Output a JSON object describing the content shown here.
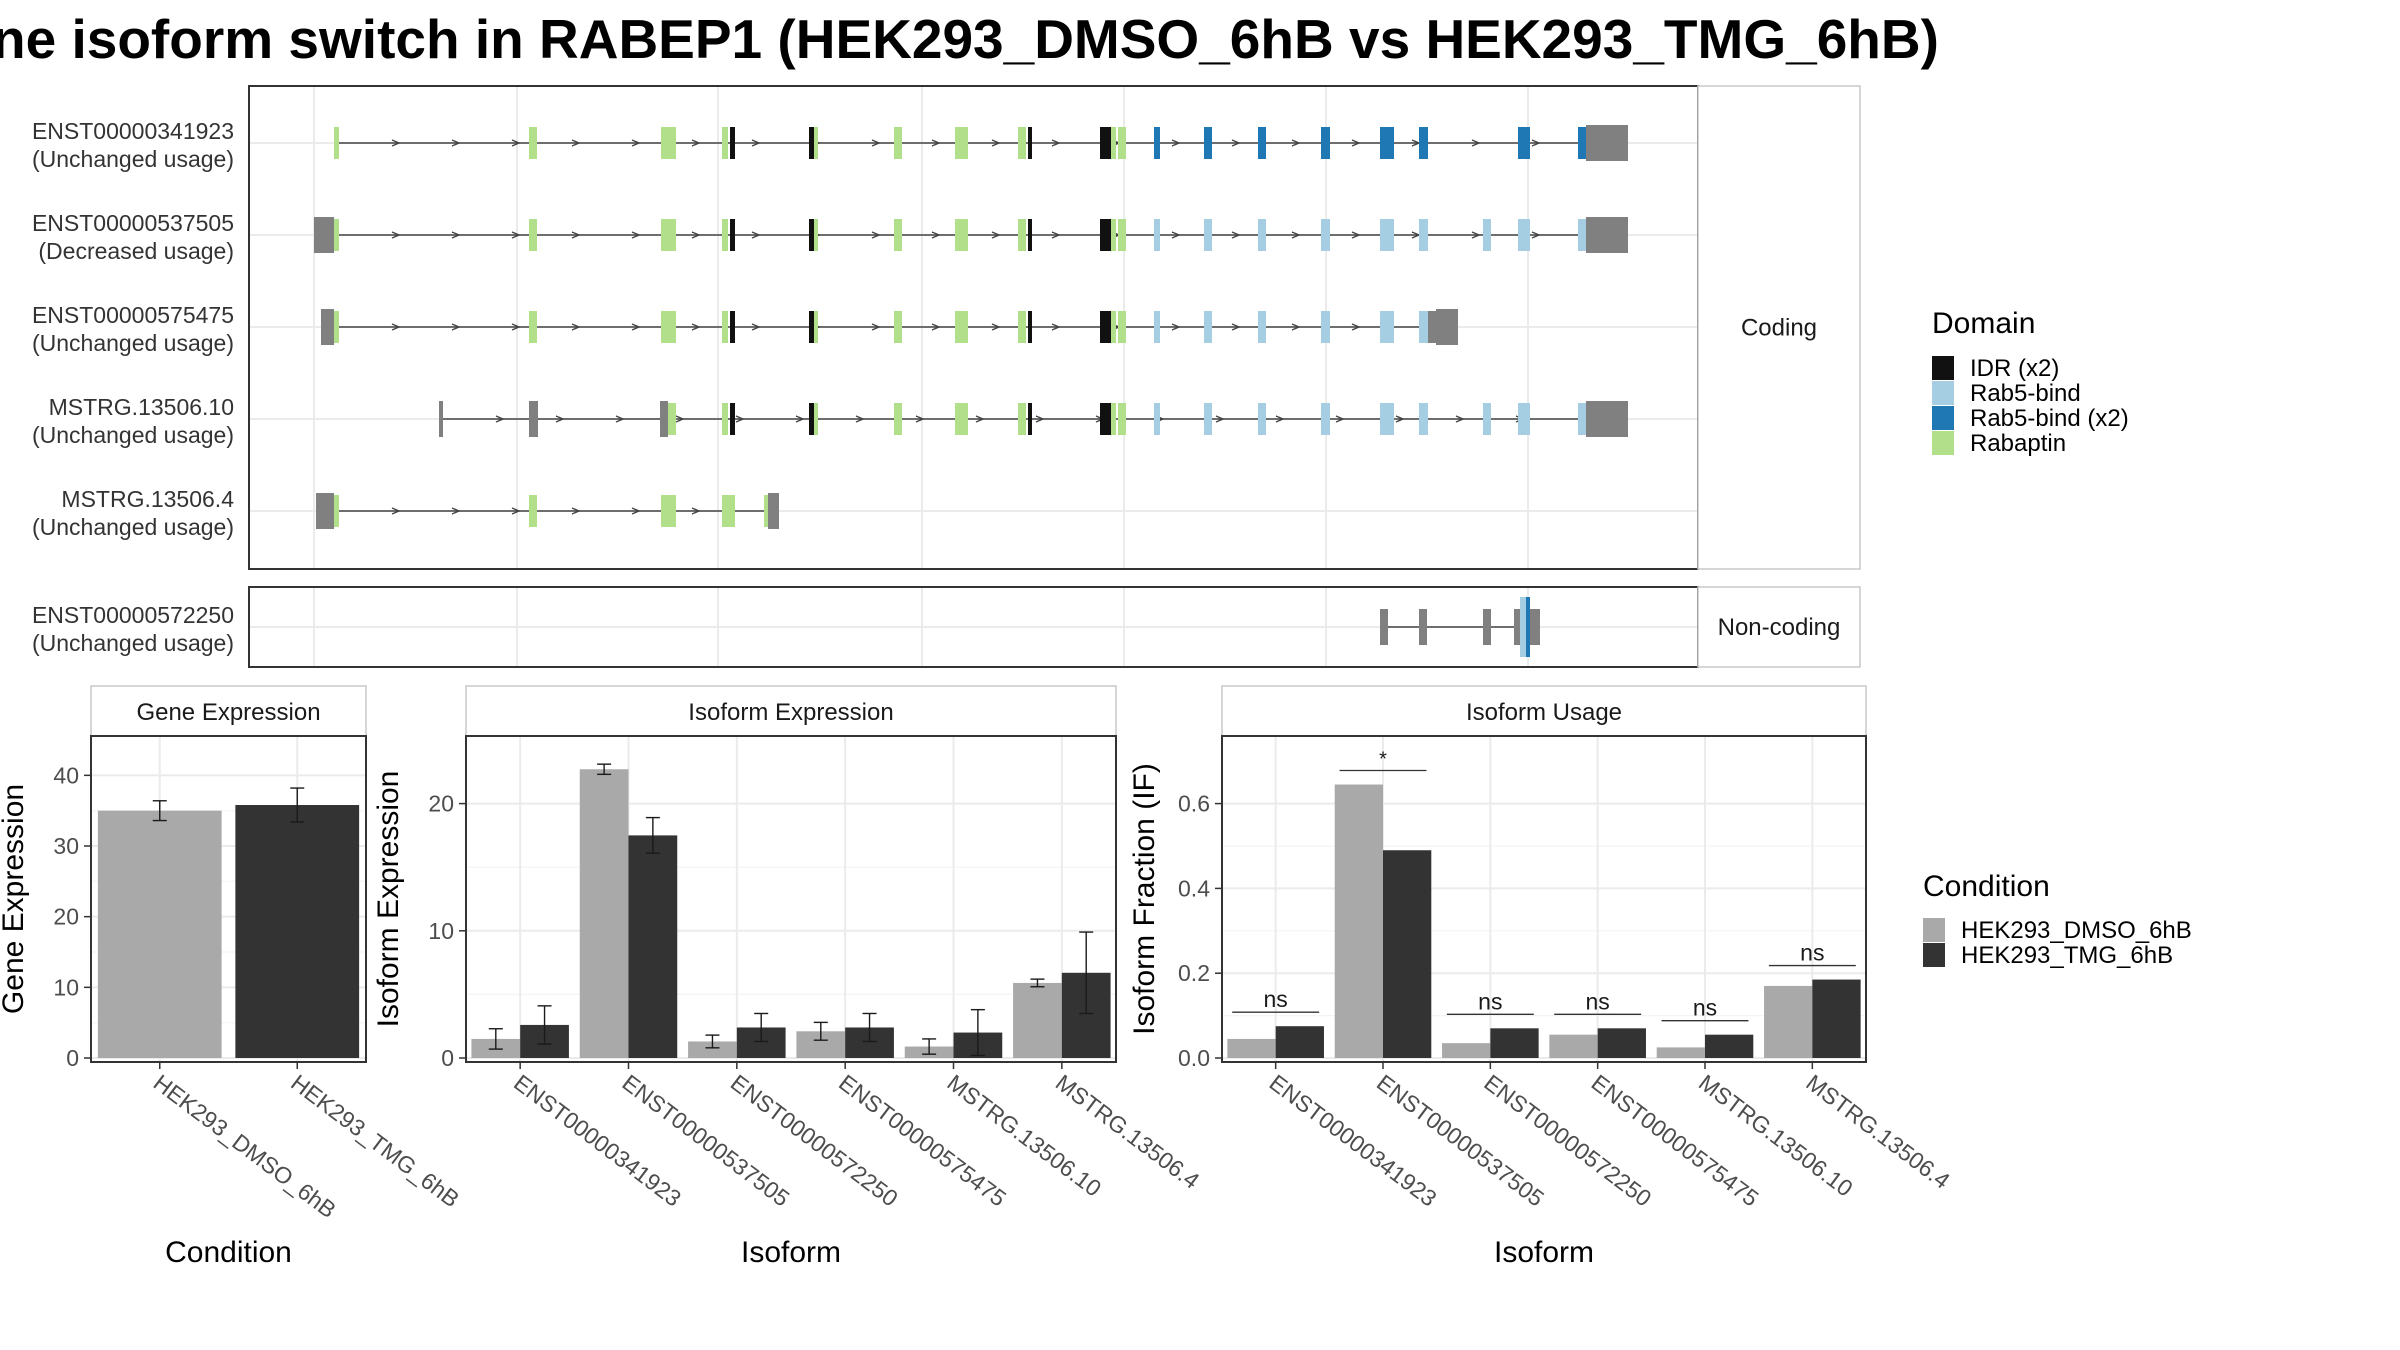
{
  "title": "ne isoform switch in RABEP1 (HEK293_DMSO_6hB vs HEK293_TMG_6hB)",
  "colors": {
    "idr": "#111111",
    "rab5_light": "#a6cee3",
    "rab5_dark": "#1f78b4",
    "rabaptin": "#b2df8a",
    "utr": "#808080",
    "dmso": "#a9a9a9",
    "tmg": "#333333"
  },
  "structure": {
    "coding_label": "Coding",
    "noncoding_label": "Non-coding",
    "transcripts": [
      {
        "id": "ENST00000341923",
        "usage": "(Unchanged usage)",
        "group": "coding"
      },
      {
        "id": "ENST00000537505",
        "usage": "(Decreased usage)",
        "group": "coding"
      },
      {
        "id": "ENST00000575475",
        "usage": "(Unchanged usage)",
        "group": "coding"
      },
      {
        "id": "MSTRG.13506.10",
        "usage": "(Unchanged usage)",
        "group": "coding"
      },
      {
        "id": "MSTRG.13506.4",
        "usage": "(Unchanged usage)",
        "group": "coding"
      },
      {
        "id": "ENST00000572250",
        "usage": "(Unchanged usage)",
        "group": "noncoding"
      }
    ]
  },
  "legend_domain": {
    "title": "Domain",
    "items": [
      {
        "label": "IDR (x2)",
        "color": "#111111"
      },
      {
        "label": "Rab5-bind",
        "color": "#a6cee3"
      },
      {
        "label": "Rab5-bind (x2)",
        "color": "#1f78b4"
      },
      {
        "label": "Rabaptin",
        "color": "#b2df8a"
      }
    ]
  },
  "legend_condition": {
    "title": "Condition",
    "items": [
      {
        "label": "HEK293_DMSO_6hB",
        "color": "#a9a9a9"
      },
      {
        "label": "HEK293_TMG_6hB",
        "color": "#333333"
      }
    ]
  },
  "chart_data": [
    {
      "type": "bar",
      "title": "Gene Expression",
      "xlabel": "Condition",
      "ylabel": "Gene Expression",
      "ylim": [
        0,
        45
      ],
      "yticks": [
        0,
        10,
        20,
        30,
        40
      ],
      "categories": [
        "HEK293_DMSO_6hB",
        "HEK293_TMG_6hB"
      ],
      "values": [
        35.0,
        35.8
      ],
      "errors": [
        1.4,
        2.4
      ]
    },
    {
      "type": "bar",
      "title": "Isoform Expression",
      "xlabel": "Isoform",
      "ylabel": "Isoform Expression",
      "ylim": [
        0,
        25
      ],
      "yticks": [
        0,
        10,
        20
      ],
      "categories": [
        "ENST00000341923",
        "ENST00000537505",
        "ENST00000572250",
        "ENST00000575475",
        "MSTRG.13506.10",
        "MSTRG.13506.4"
      ],
      "series": [
        {
          "name": "HEK293_DMSO_6hB",
          "values": [
            1.5,
            22.7,
            1.3,
            2.1,
            0.9,
            5.9
          ],
          "errors": [
            0.8,
            0.4,
            0.5,
            0.7,
            0.6,
            0.3
          ]
        },
        {
          "name": "HEK293_TMG_6hB",
          "values": [
            2.6,
            17.5,
            2.4,
            2.4,
            2.0,
            6.7
          ],
          "errors": [
            1.5,
            1.4,
            1.1,
            1.1,
            1.8,
            3.2
          ]
        }
      ]
    },
    {
      "type": "bar",
      "title": "Isoform Usage",
      "xlabel": "Isoform",
      "ylabel": "Isoform Fraction (IF)",
      "ylim": [
        0,
        0.75
      ],
      "yticks": [
        "0.0",
        "0.2",
        "0.4",
        "0.6"
      ],
      "categories": [
        "ENST00000341923",
        "ENST00000537505",
        "ENST00000572250",
        "ENST00000575475",
        "MSTRG.13506.10",
        "MSTRG.13506.4"
      ],
      "series": [
        {
          "name": "HEK293_DMSO_6hB",
          "values": [
            0.045,
            0.645,
            0.035,
            0.055,
            0.025,
            0.17
          ]
        },
        {
          "name": "HEK293_TMG_6hB",
          "values": [
            0.075,
            0.49,
            0.07,
            0.07,
            0.055,
            0.185
          ]
        }
      ],
      "significance": [
        "ns",
        "*",
        "ns",
        "ns",
        "ns",
        "ns"
      ]
    }
  ]
}
